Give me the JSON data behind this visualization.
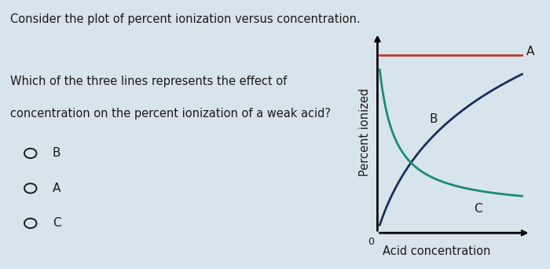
{
  "title": "Consider the plot of percent ionization versus concentration.",
  "question_line1": "Which of the three lines represents the effect of",
  "question_line2": "concentration on the percent ionization of a weak acid?",
  "choices": [
    "B",
    "A",
    "C"
  ],
  "ylabel": "Percent ionized",
  "xlabel": "Acid concentration",
  "origin_label": "0",
  "line_A": {
    "color": "#c0392b",
    "label": "A"
  },
  "line_B": {
    "color": "#1a2e5a",
    "label": "B"
  },
  "line_C": {
    "color": "#1a8a7a",
    "label": "C"
  },
  "bg_color": "#d8e4ec",
  "plot_bg": "#cdd8e0",
  "text_color": "#1a1a1a",
  "title_fontsize": 10.5,
  "body_fontsize": 10.5,
  "annotation_fontsize": 11,
  "choice_fontsize": 11
}
